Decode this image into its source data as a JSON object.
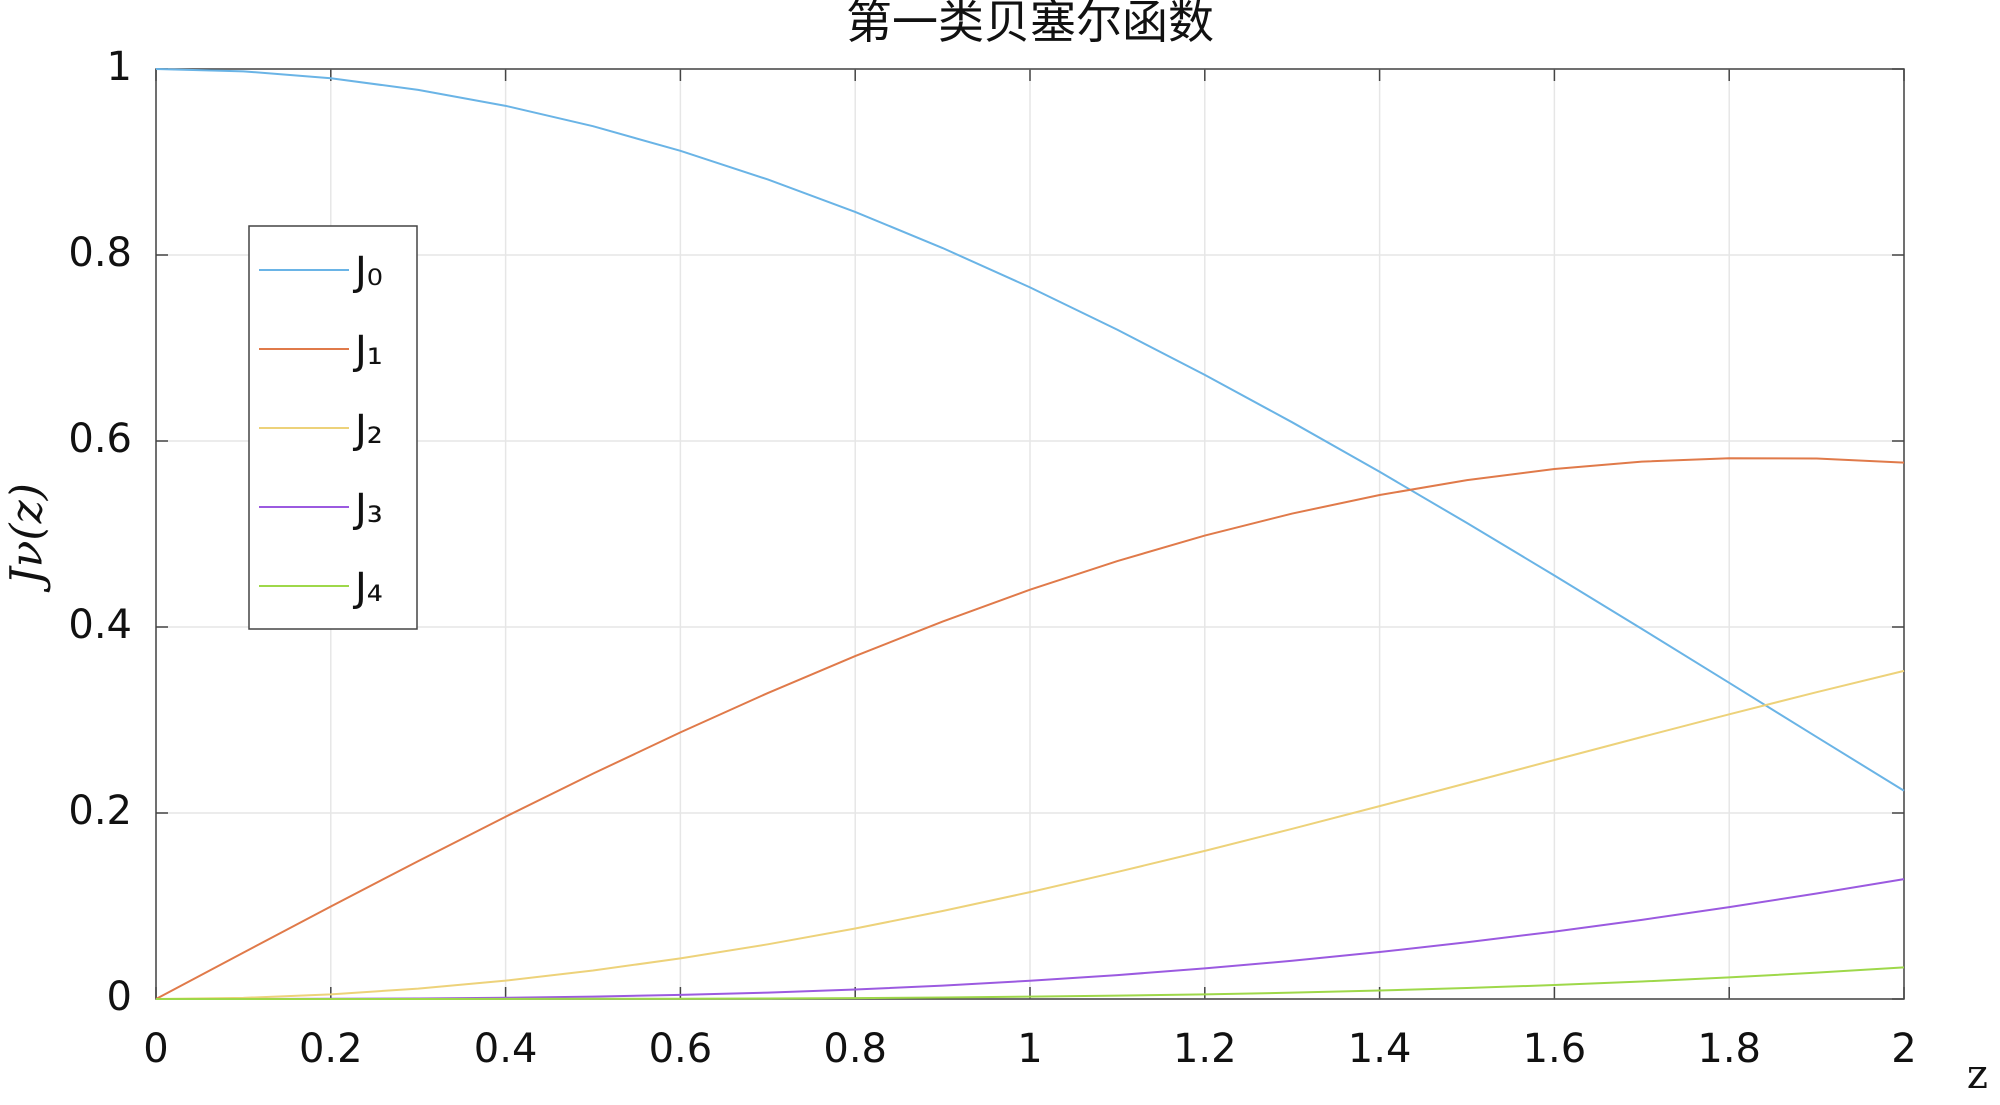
{
  "chart_data": {
    "type": "line",
    "title": "第一类贝塞尔函数",
    "x_label": "z",
    "y_label": "Jν(z)",
    "x": [
      0,
      0.1,
      0.2,
      0.3,
      0.4,
      0.5,
      0.6,
      0.7,
      0.8,
      0.9,
      1.0,
      1.1,
      1.2,
      1.3,
      1.4,
      1.5,
      1.6,
      1.7,
      1.8,
      1.9,
      2.0
    ],
    "series": [
      {
        "name": "J₀",
        "color": "#6ab4e6",
        "values": [
          1,
          0.9975,
          0.99,
          0.9776,
          0.9604,
          0.9385,
          0.912,
          0.8812,
          0.8463,
          0.8075,
          0.7652,
          0.7196,
          0.6711,
          0.6201,
          0.5669,
          0.5118,
          0.4554,
          0.398,
          0.34,
          0.2818,
          0.2239
        ]
      },
      {
        "name": "J₁",
        "color": "#e07a4a",
        "values": [
          0,
          0.0499,
          0.0995,
          0.1483,
          0.196,
          0.2423,
          0.2867,
          0.329,
          0.3688,
          0.4059,
          0.4401,
          0.4709,
          0.4983,
          0.522,
          0.5419,
          0.5579,
          0.5699,
          0.5778,
          0.5815,
          0.5812,
          0.5767
        ]
      },
      {
        "name": "J₂",
        "color": "#edd27a",
        "values": [
          0,
          0.0012,
          0.005,
          0.0112,
          0.0197,
          0.0306,
          0.0437,
          0.0588,
          0.0758,
          0.0946,
          0.1149,
          0.1366,
          0.1593,
          0.183,
          0.2074,
          0.2321,
          0.257,
          0.2817,
          0.3061,
          0.3299,
          0.3528
        ]
      },
      {
        "name": "J₃",
        "color": "#9b5ae0",
        "values": [
          0,
          0.0,
          0.0002,
          0.0006,
          0.0013,
          0.0026,
          0.0044,
          0.0069,
          0.0102,
          0.0144,
          0.0196,
          0.0257,
          0.0329,
          0.0411,
          0.0505,
          0.061,
          0.0725,
          0.0851,
          0.0988,
          0.1134,
          0.1289
        ]
      },
      {
        "name": "J₄",
        "color": "#9ed84a",
        "values": [
          0,
          0.0,
          0.0,
          0.0,
          0.0001,
          0.0002,
          0.0003,
          0.0006,
          0.001,
          0.0016,
          0.0025,
          0.0036,
          0.005,
          0.0068,
          0.0091,
          0.0118,
          0.015,
          0.0188,
          0.0232,
          0.0283,
          0.034
        ]
      }
    ],
    "xlim": [
      0,
      2
    ],
    "xticks": [
      0,
      0.2,
      0.4,
      0.6,
      0.8,
      1,
      1.2,
      1.4,
      1.6,
      1.8,
      2
    ],
    "ylim": [
      0,
      1
    ],
    "yticks": [
      0,
      0.2,
      0.4,
      0.6,
      0.8,
      1
    ],
    "grid": true,
    "legend": "west"
  }
}
